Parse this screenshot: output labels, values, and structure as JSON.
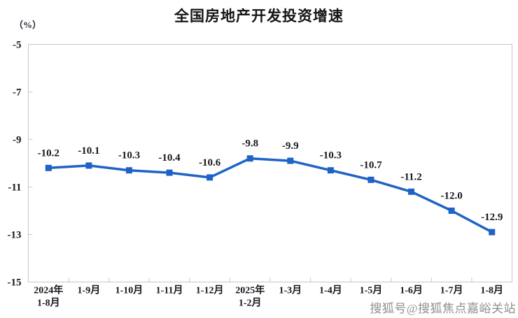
{
  "chart": {
    "title": "全国房地产开发投资增速",
    "unit_label": "（%）"
  },
  "watermark": {
    "text": "搜狐号@搜狐焦点嘉峪关站"
  },
  "chart_data": {
    "type": "line",
    "title": "全国房地产开发投资增速",
    "ylabel": "（%）",
    "xlabel": "",
    "categories": [
      "2024年\n1-8月",
      "1-9月",
      "1-10月",
      "1-11月",
      "1-12月",
      "2025年\n1-2月",
      "1-3月",
      "1-4月",
      "1-5月",
      "1-6月",
      "1-7月",
      "1-8月"
    ],
    "series": [
      {
        "name": "全国房地产开发投资增速",
        "values": [
          -10.2,
          -10.1,
          -10.3,
          -10.4,
          -10.6,
          -9.8,
          -9.9,
          -10.3,
          -10.7,
          -11.2,
          -12.0,
          -12.9
        ]
      }
    ],
    "data_labels": [
      "-10.2",
      "-10.1",
      "-10.3",
      "-10.4",
      "-10.6",
      "-9.8",
      "-9.9",
      "-10.3",
      "-10.7",
      "-11.2",
      "-12.0",
      "-12.9"
    ],
    "ylim": [
      -15,
      -5
    ],
    "yticks": [
      -5,
      -7,
      -9,
      -11,
      -13,
      -15
    ],
    "grid": false,
    "legend": "none",
    "marker": "square",
    "line_color": "#1e63c6",
    "label_color": "#17181f",
    "axis_color": "#c6c6c6"
  }
}
